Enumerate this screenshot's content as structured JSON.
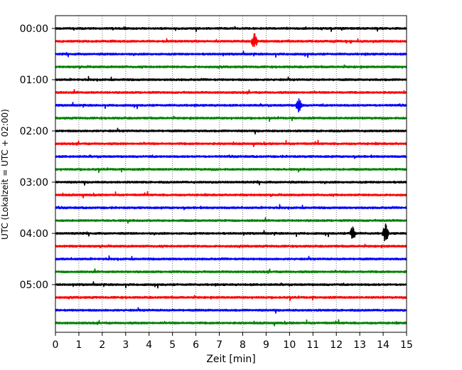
{
  "chart_data": {
    "type": "line",
    "title": "",
    "xlabel": "Zeit  [min]",
    "ylabel": "UTC (Lokalzeit = UTC + 02:00)",
    "xlim": [
      0,
      15
    ],
    "x_ticks": [
      0,
      1,
      2,
      3,
      4,
      5,
      6,
      7,
      8,
      9,
      10,
      11,
      12,
      13,
      14,
      15
    ],
    "x_tick_labels": [
      "0",
      "1",
      "2",
      "3",
      "4",
      "5",
      "6",
      "7",
      "8",
      "9",
      "10",
      "11",
      "12",
      "13",
      "14",
      "15"
    ],
    "y_tick_labels": [
      "00:00",
      "01:00",
      "02:00",
      "03:00",
      "04:00",
      "05:00"
    ],
    "grid": "vertical dotted",
    "trace_interval_min": 15,
    "trace_count": 24,
    "color_cycle": [
      "#000000",
      "#ff0000",
      "#0000ff",
      "#008000"
    ],
    "traces": [
      {
        "start": "00:00",
        "color": "#000000"
      },
      {
        "start": "00:15",
        "color": "#ff0000"
      },
      {
        "start": "00:30",
        "color": "#0000ff"
      },
      {
        "start": "00:45",
        "color": "#008000"
      },
      {
        "start": "01:00",
        "color": "#000000"
      },
      {
        "start": "01:15",
        "color": "#ff0000"
      },
      {
        "start": "01:30",
        "color": "#0000ff"
      },
      {
        "start": "01:45",
        "color": "#008000"
      },
      {
        "start": "02:00",
        "color": "#000000"
      },
      {
        "start": "02:15",
        "color": "#ff0000"
      },
      {
        "start": "02:30",
        "color": "#0000ff"
      },
      {
        "start": "02:45",
        "color": "#008000"
      },
      {
        "start": "03:00",
        "color": "#000000"
      },
      {
        "start": "03:15",
        "color": "#ff0000"
      },
      {
        "start": "03:30",
        "color": "#0000ff"
      },
      {
        "start": "03:45",
        "color": "#008000"
      },
      {
        "start": "04:00",
        "color": "#000000"
      },
      {
        "start": "04:15",
        "color": "#ff0000"
      },
      {
        "start": "04:30",
        "color": "#0000ff"
      },
      {
        "start": "04:45",
        "color": "#008000"
      },
      {
        "start": "05:00",
        "color": "#000000"
      },
      {
        "start": "05:15",
        "color": "#ff0000"
      },
      {
        "start": "05:30",
        "color": "#0000ff"
      },
      {
        "start": "05:45",
        "color": "#008000"
      }
    ],
    "events": [
      {
        "start": "00:15",
        "x": 8.5,
        "amplitude": 0.6
      },
      {
        "start": "01:30",
        "x": 10.4,
        "amplitude": 0.5
      },
      {
        "start": "04:00",
        "x": 12.7,
        "amplitude": 0.5
      },
      {
        "start": "04:00",
        "x": 14.1,
        "amplitude": 0.7
      }
    ]
  }
}
